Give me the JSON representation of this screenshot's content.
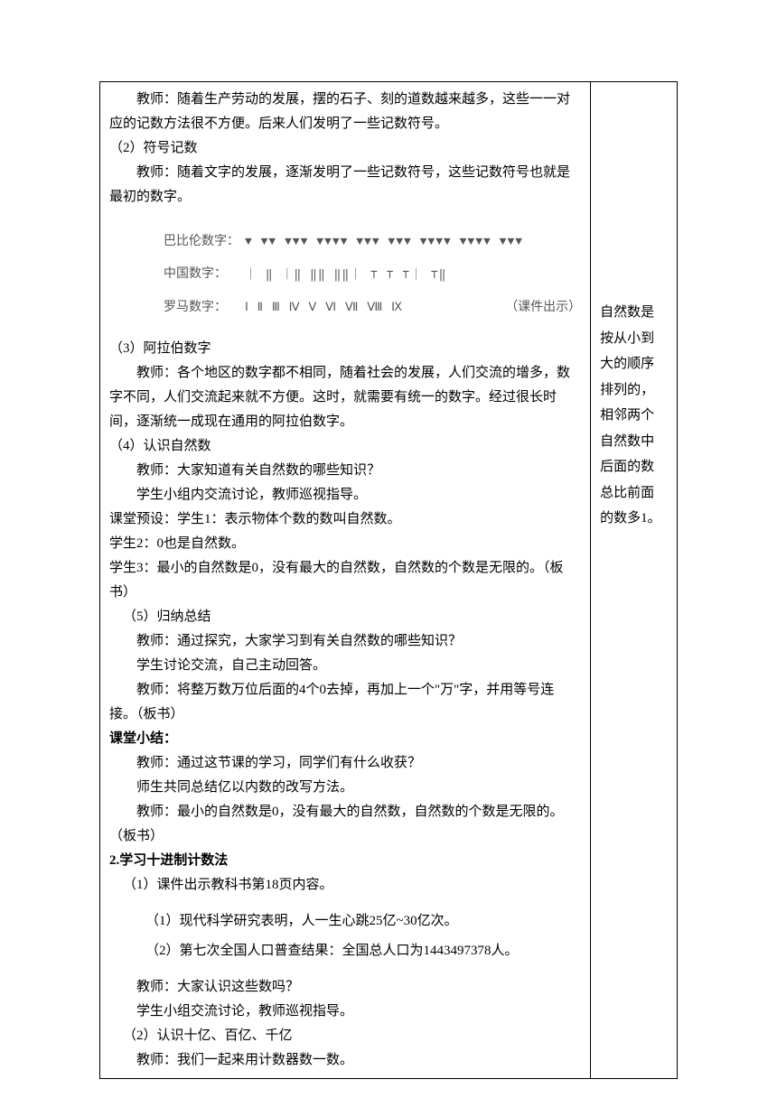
{
  "main": {
    "p1": "教师：随着生产劳动的发展，摆的石子、刻的道数越来越多，这些一一对应的记数方法很不方便。后来人们发明了一些记数符号。",
    "s2": "（2）符号记数",
    "p2": "教师：随着文字的发展，逐渐发明了一些记数符号，这些记数符号也就是最初的数字。",
    "numerals": {
      "r1_label": "巴比伦数字：",
      "r1_syms": "▼   ▼▼   ▼▼▼   ▼▼▼▼  ▼▼▼  ▼▼▼  ▼▼▼▼  ▼▼▼▼  ▼▼▼",
      "r2_label": "中国数字：",
      "r2_syms": "｜  ‖  ｜‖  ‖‖  ‖‖｜  ⊤   ⊤   ⊤｜ ⊤‖",
      "r3_label": "罗马数字：",
      "r3_syms": "Ⅰ   Ⅱ   Ⅲ   Ⅳ   Ⅴ   Ⅵ   Ⅶ   Ⅷ   Ⅸ",
      "r3_note": "（课件出示）"
    },
    "s3": "（3）阿拉伯数字",
    "p3": "教师：各个地区的数字都不相同，随着社会的发展，人们交流的增多，数字不同，人们交流起来就不方便。这时，就需要有统一的数字。经过很长时间，逐渐统一成现在通用的阿拉伯数字。",
    "s4": "（4）认识自然数",
    "p4a": "教师：大家知道有关自然数的哪些知识？",
    "p4b": "学生小组内交流讨论，教师巡视指导。",
    "p4c": "课堂预设：学生1：表示物体个数的数叫自然数。",
    "p4d": "学生2：0也是自然数。",
    "p4e": "学生3：最小的自然数是0，没有最大的自然数，自然数的个数是无限的。（板书）",
    "s5": "（5）归纳总结",
    "p5a": "教师：通过探究，大家学习到有关自然数的哪些知识？",
    "p5b": "学生讨论交流，自己主动回答。",
    "p5c": "教师：将整万数万位后面的4个0去掉，再加上一个\"万\"字，并用等号连接。（板书）",
    "h_summary": "课堂小结：",
    "p6a": "教师：通过这节课的学习，同学们有什么收获？",
    "p6b": "师生共同总结亿以内数的改写方法。",
    "p6c": "教师：最小的自然数是0，没有最大的自然数，自然数的个数是无限的。（板书）",
    "h2": "2.学习十进制计数法",
    "s2_1": "（1）课件出示教科书第18页内容。",
    "research1": "（1）现代科学研究表明，人一生心跳25亿~30亿次。",
    "research2": "（2）第七次全国人口普查结果：全国总人口为1443497378人。",
    "p7a": "教师：大家认识这些数吗？",
    "p7b": "学生小组交流讨论，教师巡视指导。",
    "s2_2": "（2）认识十亿、百亿、千亿",
    "p8": "教师：我们一起来用计数器数一数。"
  },
  "side": {
    "note": "自然数是按从小到大的顺序排列的，相邻两个自然数中后面的数总比前面的数多1。"
  }
}
